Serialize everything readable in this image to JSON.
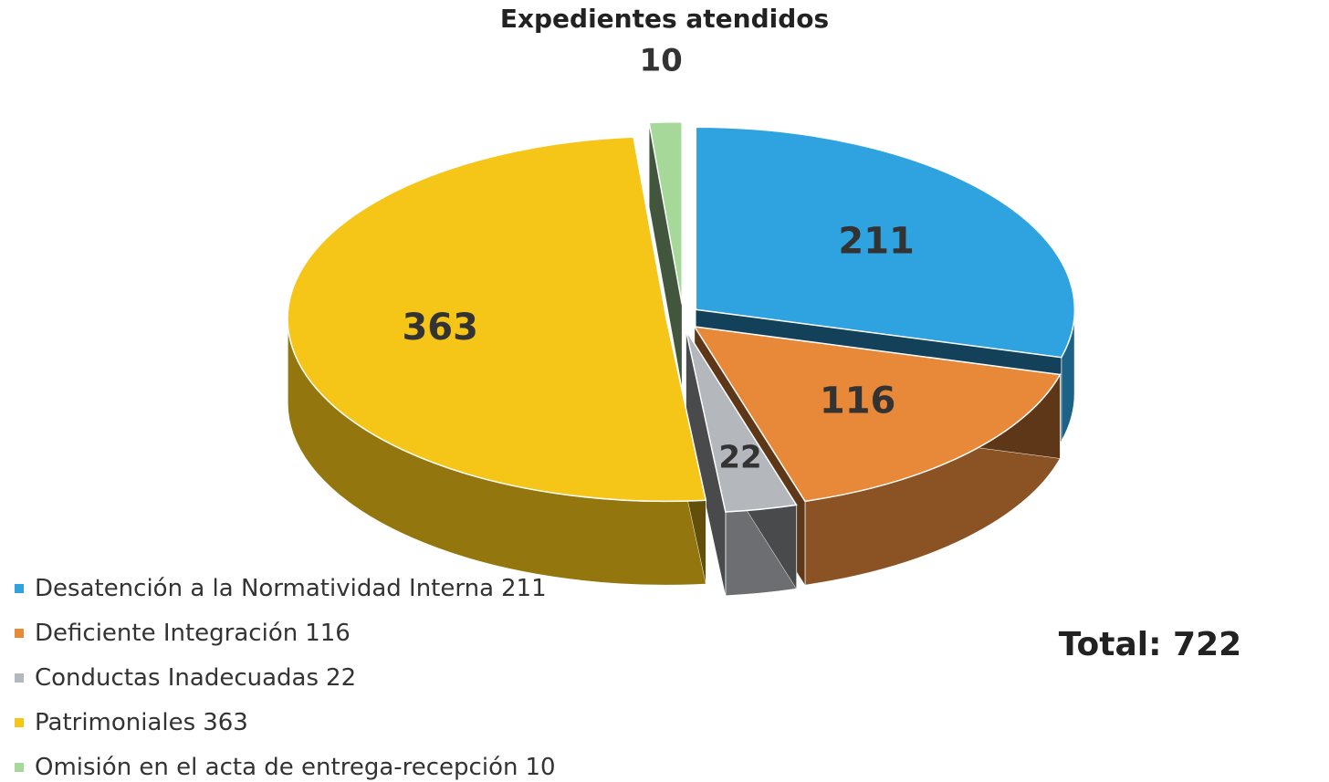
{
  "chart_data": {
    "type": "pie3d",
    "title": "Expedientes atendidos",
    "categories": [
      "Desatención a la Normatividad Interna",
      "Deficiente Integración",
      "Conductas Inadecuadas",
      "Patrimoniales",
      "Omisión en el acta de entrega-recepción"
    ],
    "values": [
      211,
      116,
      22,
      363,
      10
    ],
    "colors": [
      "#2fa3df",
      "#e8893a",
      "#b4b8bd",
      "#f5c518",
      "#a6d89a"
    ],
    "legend": "bottom-left",
    "annotation": "Total: 722"
  }
}
